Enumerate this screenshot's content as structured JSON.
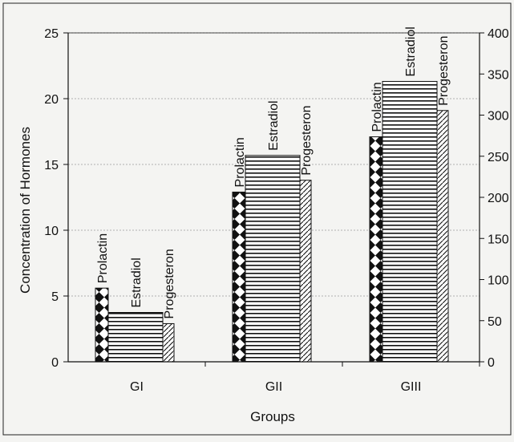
{
  "chart_data": {
    "type": "bar",
    "title": "",
    "xlabel": "Groups",
    "ylabel": "Concentration of Hormones",
    "categories": [
      "GI",
      "GII",
      "GIII"
    ],
    "series": [
      {
        "name": "Prolactin",
        "axis": "left",
        "pattern": "diamond-checker",
        "values": [
          5.6,
          12.9,
          17.1
        ]
      },
      {
        "name": "Estradiol",
        "axis": "right",
        "pattern": "horizontal-lines",
        "values": [
          60,
          251,
          341
        ]
      },
      {
        "name": "Progesteron",
        "axis": "left",
        "pattern": "diagonal-hatch",
        "values": [
          2.9,
          13.8,
          19.1
        ]
      }
    ],
    "y_left": {
      "lim": [
        0,
        25
      ],
      "ticks": [
        0,
        5,
        10,
        15,
        20,
        25
      ]
    },
    "y_right": {
      "lim": [
        0,
        400
      ],
      "ticks": [
        0,
        50,
        100,
        150,
        200,
        250,
        300,
        350,
        400
      ]
    },
    "grid": true,
    "legend": "none",
    "colors": {
      "ink": "#111111",
      "background": "#f4f4f2",
      "grid": "#9a9a9a"
    }
  }
}
